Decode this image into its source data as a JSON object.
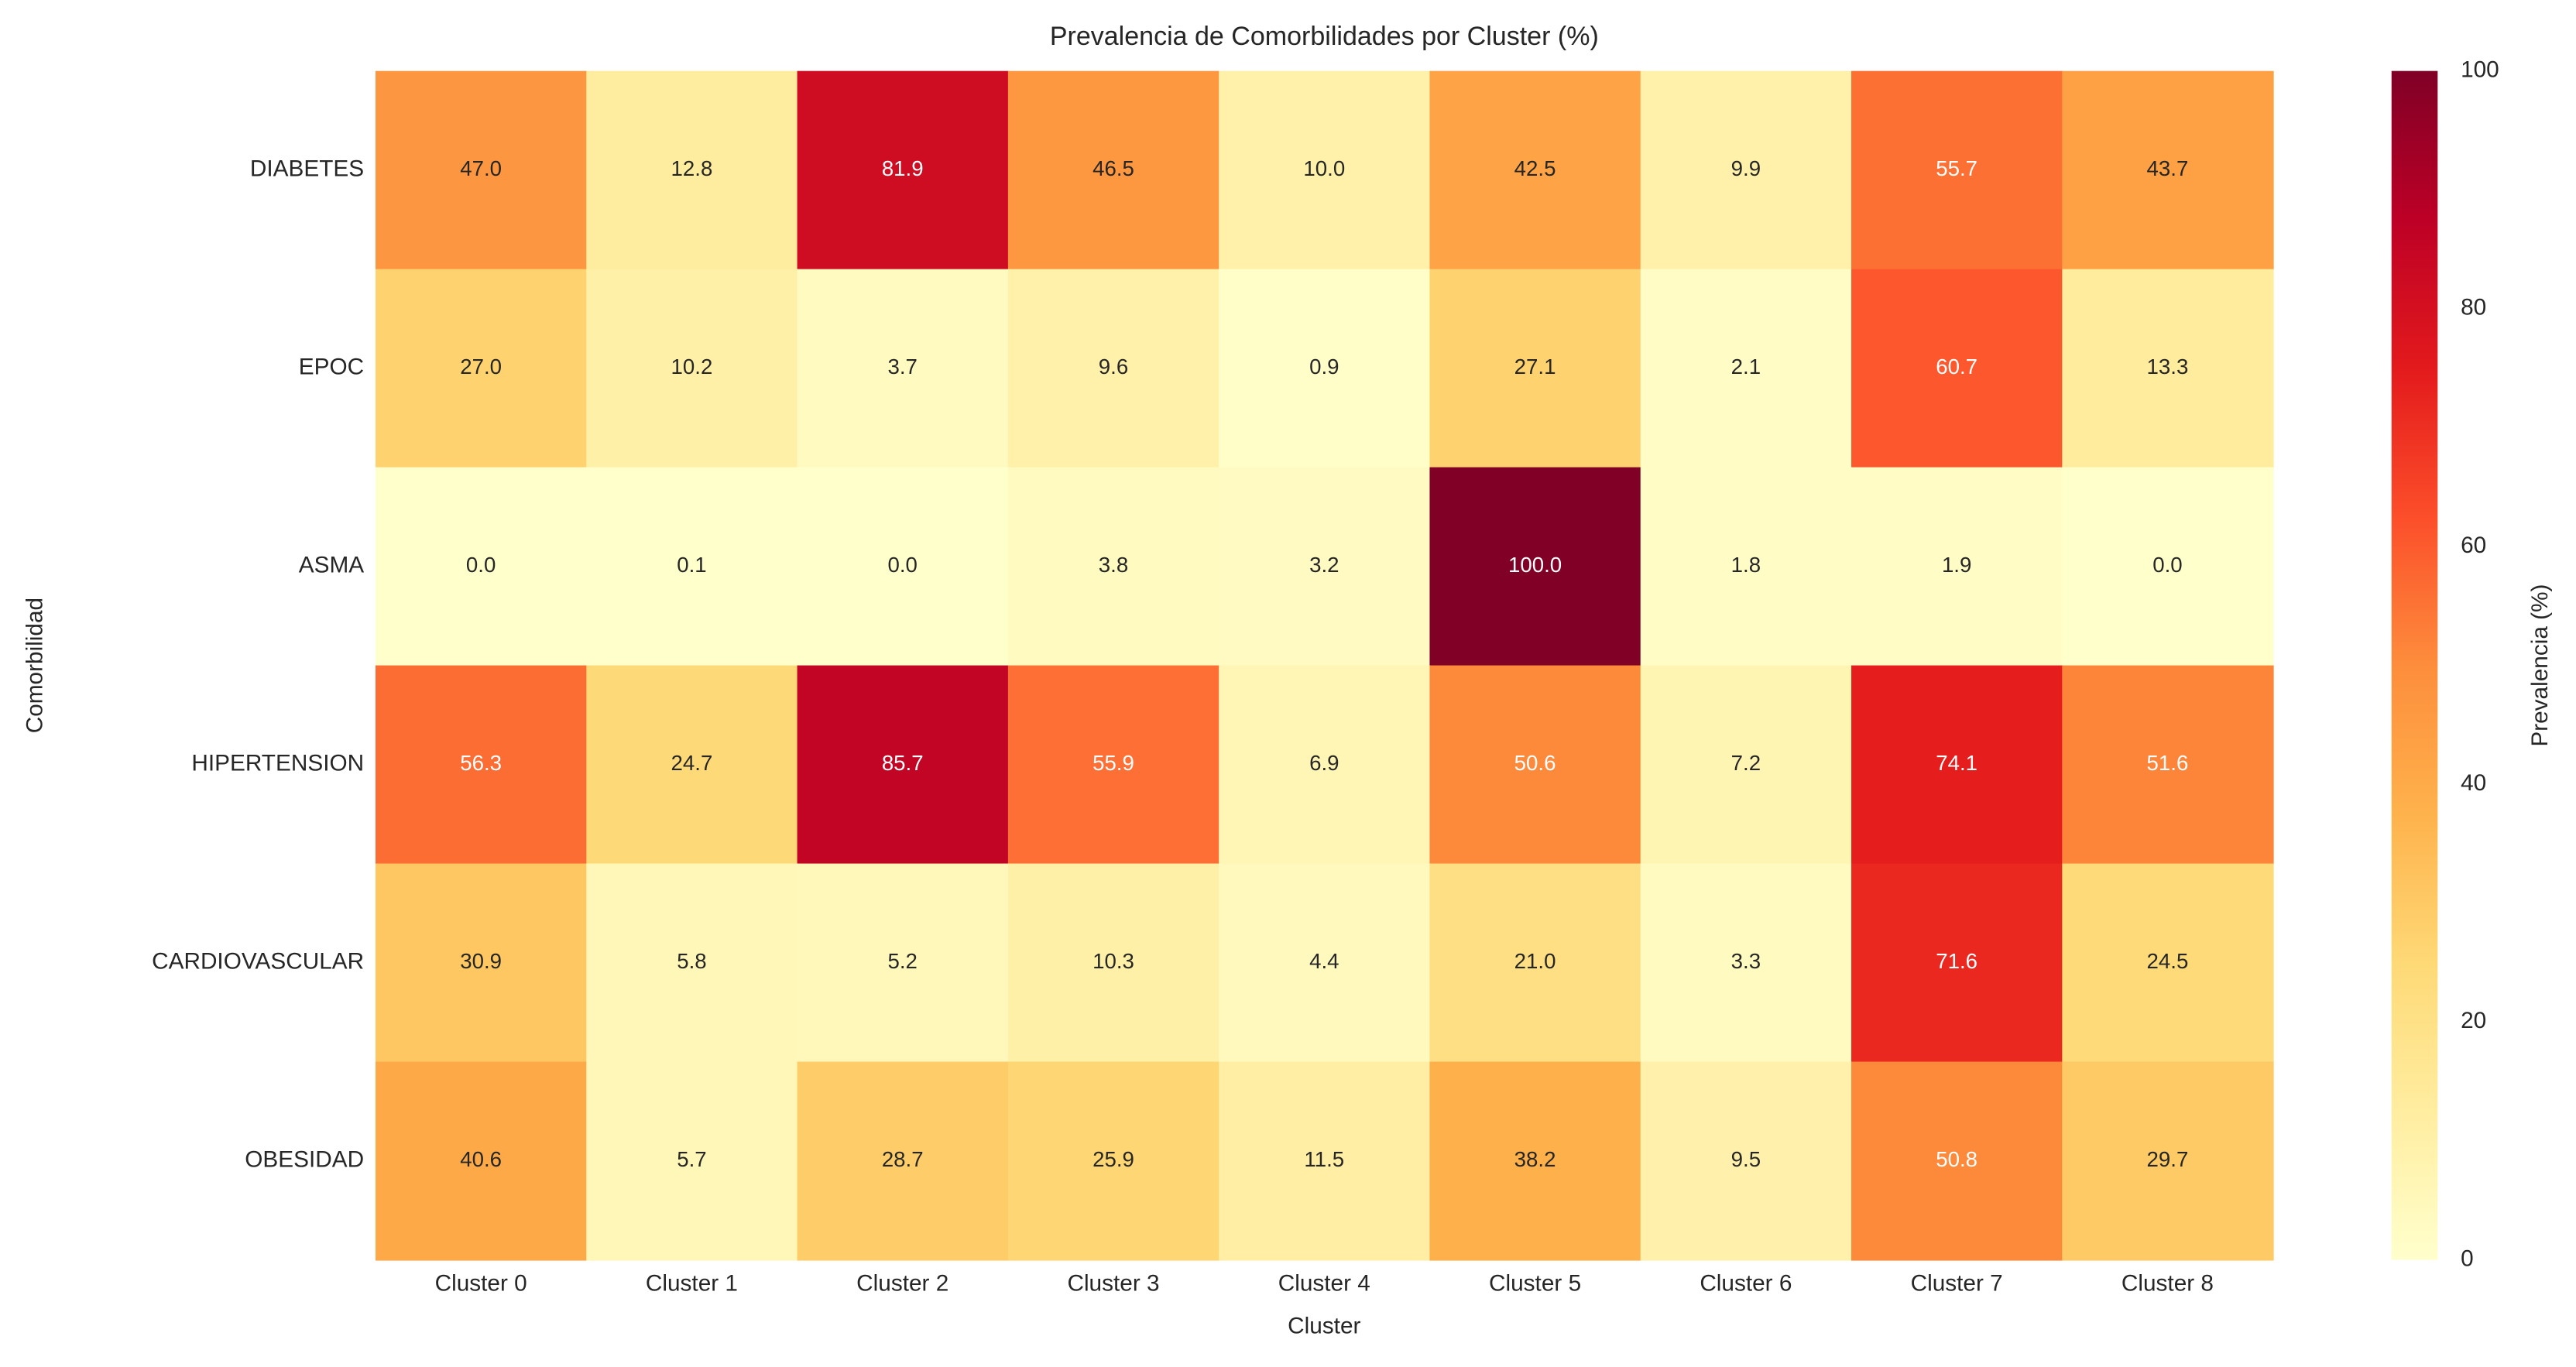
{
  "chart_data": {
    "type": "heatmap",
    "title": "Prevalencia de Comorbilidades por Cluster (%)",
    "xlabel": "Cluster",
    "ylabel": "Comorbilidad",
    "x": [
      "Cluster 0",
      "Cluster 1",
      "Cluster 2",
      "Cluster 3",
      "Cluster 4",
      "Cluster 5",
      "Cluster 6",
      "Cluster 7",
      "Cluster 8"
    ],
    "y": [
      "DIABETES",
      "EPOC",
      "ASMA",
      "HIPERTENSION",
      "CARDIOVASCULAR",
      "OBESIDAD"
    ],
    "values": [
      [
        47.0,
        12.8,
        81.9,
        46.5,
        10.0,
        42.5,
        9.9,
        55.7,
        43.7
      ],
      [
        27.0,
        10.2,
        3.7,
        9.6,
        0.9,
        27.1,
        2.1,
        60.7,
        13.3
      ],
      [
        0.0,
        0.1,
        0.0,
        3.8,
        3.2,
        100.0,
        1.8,
        1.9,
        0.0
      ],
      [
        56.3,
        24.7,
        85.7,
        55.9,
        6.9,
        50.6,
        7.2,
        74.1,
        51.6
      ],
      [
        30.9,
        5.8,
        5.2,
        10.3,
        4.4,
        21.0,
        3.3,
        71.6,
        24.5
      ],
      [
        40.6,
        5.7,
        28.7,
        25.9,
        11.5,
        38.2,
        9.5,
        50.8,
        29.7
      ]
    ],
    "value_labels": [
      [
        "47.0",
        "12.8",
        "81.9",
        "46.5",
        "10.0",
        "42.5",
        "9.9",
        "55.7",
        "43.7"
      ],
      [
        "27.0",
        "10.2",
        "3.7",
        "9.6",
        "0.9",
        "27.1",
        "2.1",
        "60.7",
        "13.3"
      ],
      [
        "0.0",
        "0.1",
        "0.0",
        "3.8",
        "3.2",
        "100.0",
        "1.8",
        "1.9",
        "0.0"
      ],
      [
        "56.3",
        "24.7",
        "85.7",
        "55.9",
        "6.9",
        "50.6",
        "7.2",
        "74.1",
        "51.6"
      ],
      [
        "30.9",
        "5.8",
        "5.2",
        "10.3",
        "4.4",
        "21.0",
        "3.3",
        "71.6",
        "24.5"
      ],
      [
        "40.6",
        "5.7",
        "28.7",
        "25.9",
        "11.5",
        "38.2",
        "9.5",
        "50.8",
        "29.7"
      ]
    ],
    "colormap": "YlOrRd",
    "zlim": [
      0,
      100
    ],
    "zticks": [
      0,
      20,
      40,
      60,
      80,
      100
    ],
    "zlabel": "Prevalencia (%)"
  }
}
